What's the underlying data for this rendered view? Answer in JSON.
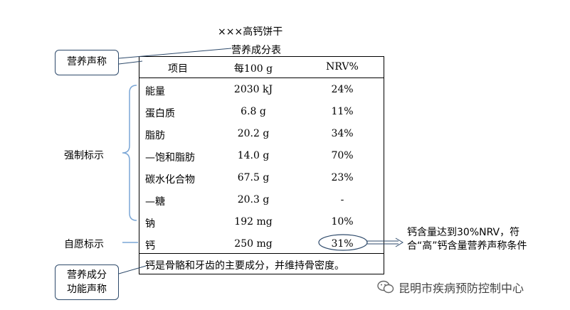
{
  "title": "×××高钙饼干",
  "caption": "营养成分表",
  "headers": {
    "item": "项目",
    "per100g": "每100 g",
    "nrv": "NRV%"
  },
  "rows": [
    {
      "name": "能量",
      "qty": "2030 kJ",
      "nrv": "24%"
    },
    {
      "name": "蛋白质",
      "qty": "6.8 g",
      "nrv": "11%"
    },
    {
      "name": "脂肪",
      "qty": "20.2 g",
      "nrv": "34%"
    },
    {
      "name": "—饱和脂肪",
      "qty": "14.0 g",
      "nrv": "70%"
    },
    {
      "name": "碳水化合物",
      "qty": "67.5 g",
      "nrv": "23%"
    },
    {
      "name": "—糖",
      "qty": "20.3 g",
      "nrv": "-"
    },
    {
      "name": "钠",
      "qty": "192 mg",
      "nrv": "10%"
    },
    {
      "name": "钙",
      "qty": "250 mg",
      "nrv": "31%"
    }
  ],
  "footer": "钙是骨骼和牙齿的主要成分，并维持骨密度。",
  "callouts": {
    "claim": "营养声称",
    "function_line1": "营养成分",
    "function_line2": "功能声称"
  },
  "labels": {
    "mandatory": "强制标示",
    "voluntary": "自愿标示"
  },
  "calcium_note": "钙含量达到30%NRV，符合“高”钙含量营养声称条件",
  "watermark": "昆明市疾病预防控制中心",
  "colors": {
    "callout_border": "#2e4a6b",
    "connector": "#2e4a6b",
    "bracket": "#7aa6d6"
  },
  "icons": {
    "watermark": "wechat-icon"
  }
}
